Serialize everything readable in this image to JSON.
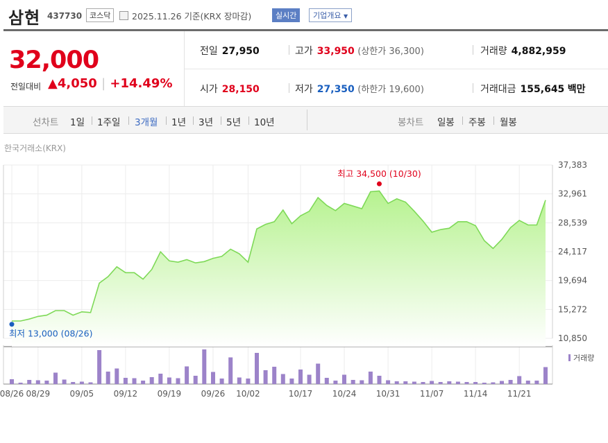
{
  "header": {
    "name": "삼현",
    "code": "437730",
    "market": "코스닥",
    "date": "2025.11.26 기준(KRX 장마감)",
    "realtime": "실시간",
    "corp_info": "기업개요"
  },
  "price": {
    "current": "32,000",
    "change_label": "전일대비",
    "change": "▲4,050",
    "change_pct": "+14.49%",
    "separator": "|"
  },
  "stats": {
    "prev_close": {
      "label": "전일",
      "value": "27,950"
    },
    "open": {
      "label": "시가",
      "value": "28,150"
    },
    "high": {
      "label": "고가",
      "value": "33,950",
      "extra": "(상한가 36,300)"
    },
    "low": {
      "label": "저가",
      "value": "27,350",
      "extra": "(하한가 19,600)"
    },
    "volume": {
      "label": "거래량",
      "value": "4,882,959"
    },
    "amount": {
      "label": "거래대금",
      "value": "155,645",
      "unit": "백만"
    }
  },
  "tabs": {
    "line_label": "선차트",
    "line_tabs": [
      "1일",
      "1주일",
      "3개월",
      "1년",
      "3년",
      "5년",
      "10년"
    ],
    "selected": "3개월",
    "candle_label": "봉차트",
    "candle_tabs": [
      "일봉",
      "주봉",
      "월봉"
    ]
  },
  "exchange_label": "한국거래소(KRX)",
  "chart_data": {
    "type": "area",
    "price_axis_ticks": [
      "37,383",
      "32,961",
      "28,539",
      "24,117",
      "19,694",
      "15,272",
      "10,850"
    ],
    "ylim": [
      10850,
      37383
    ],
    "x_tick_labels": [
      "08/26",
      "08/29",
      "09/05",
      "09/12",
      "09/19",
      "09/26",
      "10/02",
      "10/17",
      "10/24",
      "10/31",
      "11/07",
      "11/14",
      "11/21"
    ],
    "x_tick_index": [
      0,
      3,
      8,
      13,
      18,
      23,
      27,
      33,
      38,
      43,
      48,
      53,
      58
    ],
    "high_annotation": "최고 34,500 (10/30)",
    "high_index": 42,
    "high_value": 34500,
    "low_annotation": "최저 13,000 (08/26)",
    "low_index": 0,
    "low_value": 13000,
    "series": [
      {
        "values": [
          13500,
          13500,
          13800,
          14200,
          14400,
          15100,
          15100,
          14400,
          14900,
          14800,
          19300,
          20300,
          21800,
          20900,
          20900,
          19900,
          21400,
          24100,
          22700,
          22500,
          22900,
          22400,
          22600,
          23100,
          23400,
          24500,
          23800,
          22500,
          27600,
          28300,
          28700,
          30500,
          28400,
          29600,
          30300,
          32400,
          31200,
          30400,
          31500,
          31100,
          30700,
          33300,
          33400,
          31500,
          32200,
          31700,
          30300,
          28800,
          27100,
          27500,
          27700,
          28700,
          28700,
          28100,
          25800,
          24600,
          26000,
          27800,
          28900,
          28200,
          28200,
          32000
        ]
      }
    ],
    "volume_legend": "거래량",
    "volume_relative": [
      0.14,
      0.04,
      0.12,
      0.11,
      0.1,
      0.33,
      0.13,
      0.06,
      0.07,
      0.05,
      0.98,
      0.36,
      0.45,
      0.18,
      0.17,
      0.1,
      0.2,
      0.3,
      0.19,
      0.17,
      0.51,
      0.24,
      1.0,
      0.35,
      0.16,
      0.77,
      0.19,
      0.16,
      0.9,
      0.4,
      0.5,
      0.29,
      0.16,
      0.42,
      0.27,
      0.59,
      0.18,
      0.1,
      0.27,
      0.12,
      0.11,
      0.36,
      0.24,
      0.11,
      0.08,
      0.08,
      0.07,
      0.06,
      0.09,
      0.06,
      0.08,
      0.07,
      0.06,
      0.06,
      0.04,
      0.05,
      0.09,
      0.12,
      0.23,
      0.1,
      0.1,
      0.49
    ],
    "colors": {
      "line": "#7ed957",
      "fill_top": "#b6f28f",
      "fill_bottom": "#ffffff",
      "volume": "#9c83c9",
      "high_marker": "#e0001b",
      "low_marker": "#1a5fbf"
    }
  }
}
